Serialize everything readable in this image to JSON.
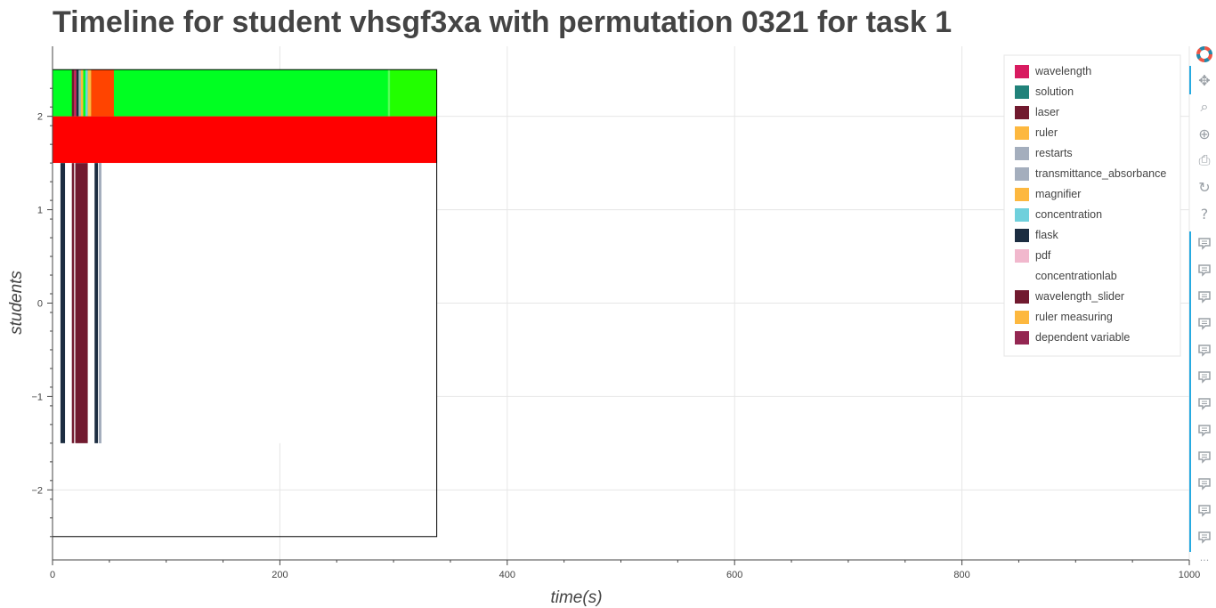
{
  "page": {
    "title": "Timeline for student vhsgf3xa with permutation 0321 for task 1"
  },
  "chart_data": {
    "type": "bar",
    "orientation": "horizontal-timeline",
    "title": "Timeline for student vhsgf3xa with permutation 0321 for task 1",
    "xlabel": "time(s)",
    "ylabel": "students",
    "xlim": [
      0,
      1000
    ],
    "ylim": [
      -2.75,
      2.75
    ],
    "xticks": [
      0,
      200,
      400,
      600,
      800,
      1000
    ],
    "xtick_labels": [
      "0",
      "200",
      "400",
      "600",
      "800",
      "1000"
    ],
    "yticks": [
      -2,
      -1,
      0,
      1,
      2
    ],
    "ytick_labels": [
      "−2",
      "−1",
      "0",
      "1",
      "2"
    ],
    "grid": true,
    "legend_position": "top-right",
    "legend": [
      {
        "name": "wavelength",
        "color": "#d81b60"
      },
      {
        "name": "solution",
        "color": "#21827a"
      },
      {
        "name": "laser",
        "color": "#711a2f"
      },
      {
        "name": "ruler",
        "color": "#fdb83f"
      },
      {
        "name": "restarts",
        "color": "#a4aebd"
      },
      {
        "name": "transmittance_absorbance",
        "color": "#a4aebd"
      },
      {
        "name": "magnifier",
        "color": "#fdb83f"
      },
      {
        "name": "concentration",
        "color": "#6fd0dc"
      },
      {
        "name": "flask",
        "color": "#1c2d41"
      },
      {
        "name": "pdf",
        "color": "#f1b8cd"
      },
      {
        "name": "concentrationlab",
        "color": "#ffffff"
      },
      {
        "name": "wavelength_slider",
        "color": "#711a2f"
      },
      {
        "name": "ruler measuring",
        "color": "#fdb83f"
      },
      {
        "name": "dependent variable",
        "color": "#942752"
      }
    ],
    "rows": [
      {
        "y0": 2.0,
        "y1": 2.5,
        "background": "#00ff22",
        "segments": [
          {
            "start": 0,
            "end": 17,
            "color": "#00ff22"
          },
          {
            "start": 17,
            "end": 19,
            "color": "#711a2f"
          },
          {
            "start": 19,
            "end": 21,
            "color": "#d81b60"
          },
          {
            "start": 21,
            "end": 23,
            "color": "#1c2d41"
          },
          {
            "start": 23,
            "end": 25,
            "color": "#a4aebd"
          },
          {
            "start": 25,
            "end": 27,
            "color": "#fdb83f"
          },
          {
            "start": 27,
            "end": 29,
            "color": "#00ff22"
          },
          {
            "start": 29,
            "end": 31,
            "color": "#6fd0dc"
          },
          {
            "start": 31,
            "end": 34,
            "color": "#fdb83f"
          },
          {
            "start": 34,
            "end": 54,
            "color": "#ff4400"
          },
          {
            "start": 54,
            "end": 295,
            "color": "#00ff22"
          },
          {
            "start": 295,
            "end": 297,
            "color": "#55ff55"
          },
          {
            "start": 297,
            "end": 338,
            "color": "#22ff00"
          }
        ]
      },
      {
        "y0": 1.5,
        "y1": 2.0,
        "background": "#ff0000",
        "segments": []
      },
      {
        "y0": -1.5,
        "y1": 1.5,
        "background": "#ffffff",
        "segments": [
          {
            "start": 7,
            "end": 11,
            "color": "#1c2d41"
          },
          {
            "start": 17,
            "end": 19,
            "color": "#711a2f"
          },
          {
            "start": 20,
            "end": 31,
            "color": "#711a2f"
          },
          {
            "start": 37,
            "end": 40,
            "color": "#1c2d41"
          },
          {
            "start": 41,
            "end": 43,
            "color": "#a4aebd"
          },
          {
            "start": 41,
            "end": 42,
            "color": "#a4aebd"
          },
          {
            "start": 41,
            "end": 42,
            "color": "#a4aebd"
          },
          {
            "start": 41,
            "end": 43,
            "color": "#a4aebd"
          },
          {
            "start": 41,
            "end": 42,
            "color": "#a4aebd"
          },
          {
            "start": 41,
            "end": 42,
            "color": "#a4aebd"
          },
          {
            "start": 41,
            "end": 42,
            "color": "#a4aebd"
          },
          {
            "start": 41,
            "end": 42,
            "color": "#a4aebd"
          },
          {
            "start": 41,
            "end": 42,
            "color": "#a4aebd"
          },
          {
            "start": 41,
            "end": 42,
            "color": "#a4aebd"
          },
          {
            "start": 41,
            "end": 42,
            "color": "#a4aebd"
          },
          {
            "start": 41,
            "end": 42,
            "color": "#a4aebd"
          },
          {
            "start": 41,
            "end": 42,
            "color": "#a4aebd"
          },
          {
            "start": 41,
            "end": 42,
            "color": "#a4aebd"
          },
          {
            "start": 41,
            "end": 42,
            "color": "#a4aebd"
          },
          {
            "start": 41,
            "end": 42,
            "color": "#a4aebd"
          },
          {
            "start": 41,
            "end": 42,
            "color": "#a4aebd"
          },
          {
            "start": 41,
            "end": 42,
            "color": "#a4aebd"
          },
          {
            "start": 41,
            "end": 42,
            "color": "#a4aebd"
          },
          {
            "start": 41,
            "end": 42,
            "color": "#a4aebd"
          },
          {
            "start": 41,
            "end": 42,
            "color": "#a4aebd"
          },
          {
            "start": 41,
            "end": 42,
            "color": "#a4aebd"
          },
          {
            "start": 41,
            "end": 42,
            "color": "#a4aebd"
          },
          {
            "start": 41,
            "end": 42,
            "color": "#a4aebd"
          },
          {
            "start": 41,
            "end": 42,
            "color": "#a4aebd"
          },
          {
            "start": 41,
            "end": 42,
            "color": "#a4aebd"
          },
          {
            "start": 41,
            "end": 42,
            "color": "#a4aebd"
          },
          {
            "start": 41,
            "end": 42,
            "color": "#a4aebd"
          },
          {
            "start": 41,
            "end": 42,
            "color": "#a4aebd"
          },
          {
            "start": 41,
            "end": 42,
            "color": "#a4aebd"
          },
          {
            "start": 41,
            "end": 42,
            "color": "#a4aebd"
          },
          {
            "start": 41,
            "end": 42,
            "color": "#a4aebd"
          },
          {
            "start": 41,
            "end": 42,
            "color": "#a4aebd"
          },
          {
            "start": 41,
            "end": 42,
            "color": "#a4aebd"
          },
          {
            "start": 41,
            "end": 42,
            "color": "#a4aebd"
          },
          {
            "start": 41,
            "end": 42,
            "color": "#a4aebd"
          },
          {
            "start": 41,
            "end": 42,
            "color": "#a4aebd"
          },
          {
            "start": 41,
            "end": 42,
            "color": "#a4aebd"
          },
          {
            "start": 41,
            "end": 42,
            "color": "#a4aebd"
          },
          {
            "start": 41,
            "end": 42,
            "color": "#a4aebd"
          },
          {
            "start": 41,
            "end": 42,
            "color": "#a4aebd"
          },
          {
            "start": 41,
            "end": 42,
            "color": "#a4aebd"
          },
          {
            "start": 41,
            "end": 42,
            "color": "#a4aebd"
          },
          {
            "start": 41,
            "end": 42,
            "color": "#a4aebd"
          },
          {
            "start": 41,
            "end": 42,
            "color": "#a4aebd"
          },
          {
            "start": 41,
            "end": 42,
            "color": "#a4aebd"
          },
          {
            "start": 41,
            "end": 42,
            "color": "#a4aebd"
          },
          {
            "start": 41,
            "end": 42,
            "color": "#a4aebd"
          },
          {
            "start": 41,
            "end": 42,
            "color": "#a4aebd"
          },
          {
            "start": 41,
            "end": 42,
            "color": "#a4aebd"
          },
          {
            "start": 41,
            "end": 42,
            "color": "#a4aebd"
          },
          {
            "start": 41,
            "end": 42,
            "color": "#a4aebd"
          },
          {
            "start": 41,
            "end": 42,
            "color": "#a4aebd"
          },
          {
            "start": 41,
            "end": 42,
            "color": "#a4aebd"
          },
          {
            "start": 41,
            "end": 42,
            "color": "#a4aebd"
          },
          {
            "start": 41,
            "end": 42,
            "color": "#a4aebd"
          },
          {
            "start": 41,
            "end": 42,
            "color": "#a4aebd"
          },
          {
            "start": 41,
            "end": 42,
            "color": "#a4aebd"
          },
          {
            "start": 41,
            "end": 42,
            "color": "#a4aebd"
          },
          {
            "start": 41,
            "end": 42,
            "color": "#a4aebd"
          },
          {
            "start": 41,
            "end": 42,
            "color": "#a4aebd"
          },
          {
            "start": 41,
            "end": 42,
            "color": "#a4aebd"
          },
          {
            "start": 41,
            "end": 42,
            "color": "#a4aebd"
          },
          {
            "start": 41,
            "end": 42,
            "color": "#a4aebd"
          },
          {
            "start": 41,
            "end": 42,
            "color": "#a4aebd"
          },
          {
            "start": 41,
            "end": 42,
            "color": "#a4aebd"
          },
          {
            "start": 41,
            "end": 42,
            "color": "#a4aebd"
          },
          {
            "start": 41,
            "end": 42,
            "color": "#a4aebd"
          },
          {
            "start": 41,
            "end": 42,
            "color": "#a4aebd"
          },
          {
            "start": 41,
            "end": 42,
            "color": "#a4aebd"
          },
          {
            "start": 41,
            "end": 42,
            "color": "#a4aebd"
          },
          {
            "start": 41,
            "end": 42,
            "color": "#a4aebd"
          },
          {
            "start": 41,
            "end": 42,
            "color": "#a4aebd"
          },
          {
            "start": 41,
            "end": 42,
            "color": "#a4aebd"
          },
          {
            "start": 41,
            "end": 42,
            "color": "#a4aebd"
          },
          {
            "start": 41,
            "end": 42,
            "color": "#a4aebd"
          },
          {
            "start": 41,
            "end": 42,
            "color": "#a4aebd"
          },
          {
            "start": 41,
            "end": 42,
            "color": "#a4aebd"
          },
          {
            "start": 41,
            "end": 42,
            "color": "#a4aebd"
          },
          {
            "start": 41,
            "end": 42,
            "color": "#a4aebd"
          },
          {
            "start": 41,
            "end": 42,
            "color": "#a4aebd"
          },
          {
            "start": 41,
            "end": 42,
            "color": "#a4aebd"
          },
          {
            "start": 41,
            "end": 42,
            "color": "#a4aebd"
          },
          {
            "start": 41,
            "end": 42,
            "color": "#a4aebd"
          },
          {
            "start": 41,
            "end": 42,
            "color": "#a4aebd"
          },
          {
            "start": 41,
            "end": 42,
            "color": "#a4aebd"
          },
          {
            "start": 41,
            "end": 42,
            "color": "#a4aebd"
          },
          {
            "start": 41,
            "end": 42,
            "color": "#a4aebd"
          },
          {
            "start": 41,
            "end": 42,
            "color": "#a4aebd"
          },
          {
            "start": 41,
            "end": 42,
            "color": "#a4aebd"
          },
          {
            "start": 41,
            "end": 42,
            "color": "#a4aebd"
          },
          {
            "start": 41,
            "end": 42,
            "color": "#a4aebd"
          },
          {
            "start": 41,
            "end": 42,
            "color": "#a4aebd"
          },
          {
            "start": 41,
            "end": 42,
            "color": "#a4aebd"
          },
          {
            "start": 41,
            "end": 42,
            "color": "#a4aebd"
          },
          {
            "start": 41,
            "end": 42,
            "color": "#a4aebd"
          },
          {
            "start": 41,
            "end": 42,
            "color": "#a4aebd"
          },
          {
            "start": 41,
            "end": 42,
            "color": "#a4aebd"
          },
          {
            "start": 41,
            "end": 42,
            "color": "#a4aebd"
          },
          {
            "start": 41,
            "end": 42,
            "color": "#a4aebd"
          },
          {
            "start": 41,
            "end": 42,
            "color": "#a4aebd"
          },
          {
            "start": 41,
            "end": 42,
            "color": "#a4aebd"
          },
          {
            "start": 41,
            "end": 42,
            "color": "#a4aebd"
          },
          {
            "start": 41,
            "end": 42,
            "color": "#a4aebd"
          },
          {
            "start": 41,
            "end": 42,
            "color": "#a4aebd"
          },
          {
            "start": 41,
            "end": 42,
            "color": "#a4aebd"
          },
          {
            "start": 41,
            "end": 42,
            "color": "#a4aebd"
          },
          {
            "start": 41,
            "end": 42,
            "color": "#a4aebd"
          },
          {
            "start": 41,
            "end": 42,
            "color": "#a4aebd"
          },
          {
            "start": 41,
            "end": 42,
            "color": "#a4aebd"
          },
          {
            "start": 41,
            "end": 42,
            "color": "#a4aebd"
          },
          {
            "start": 41,
            "end": 42,
            "color": "#a4aebd"
          },
          {
            "start": 41,
            "end": 42,
            "color": "#a4aebd"
          },
          {
            "start": 41,
            "end": 42,
            "color": "#a4aebd"
          },
          {
            "start": 41,
            "end": 42,
            "color": "#a4aebd"
          },
          {
            "start": 41,
            "end": 42,
            "color": "#a4aebd"
          }
        ]
      }
    ]
  },
  "toolbar": {
    "logo_icon": "bokeh-logo-icon",
    "tools": [
      {
        "name": "pan-tool",
        "glyph": "✥"
      },
      {
        "name": "box-zoom-tool",
        "glyph": "⌕"
      },
      {
        "name": "wheel-zoom-tool",
        "glyph": "⊕"
      },
      {
        "name": "save-tool",
        "glyph": "⎙"
      },
      {
        "name": "reset-tool",
        "glyph": "↻"
      },
      {
        "name": "help-tool",
        "glyph": "?"
      }
    ],
    "hover_count": 12,
    "more_label": "···"
  }
}
